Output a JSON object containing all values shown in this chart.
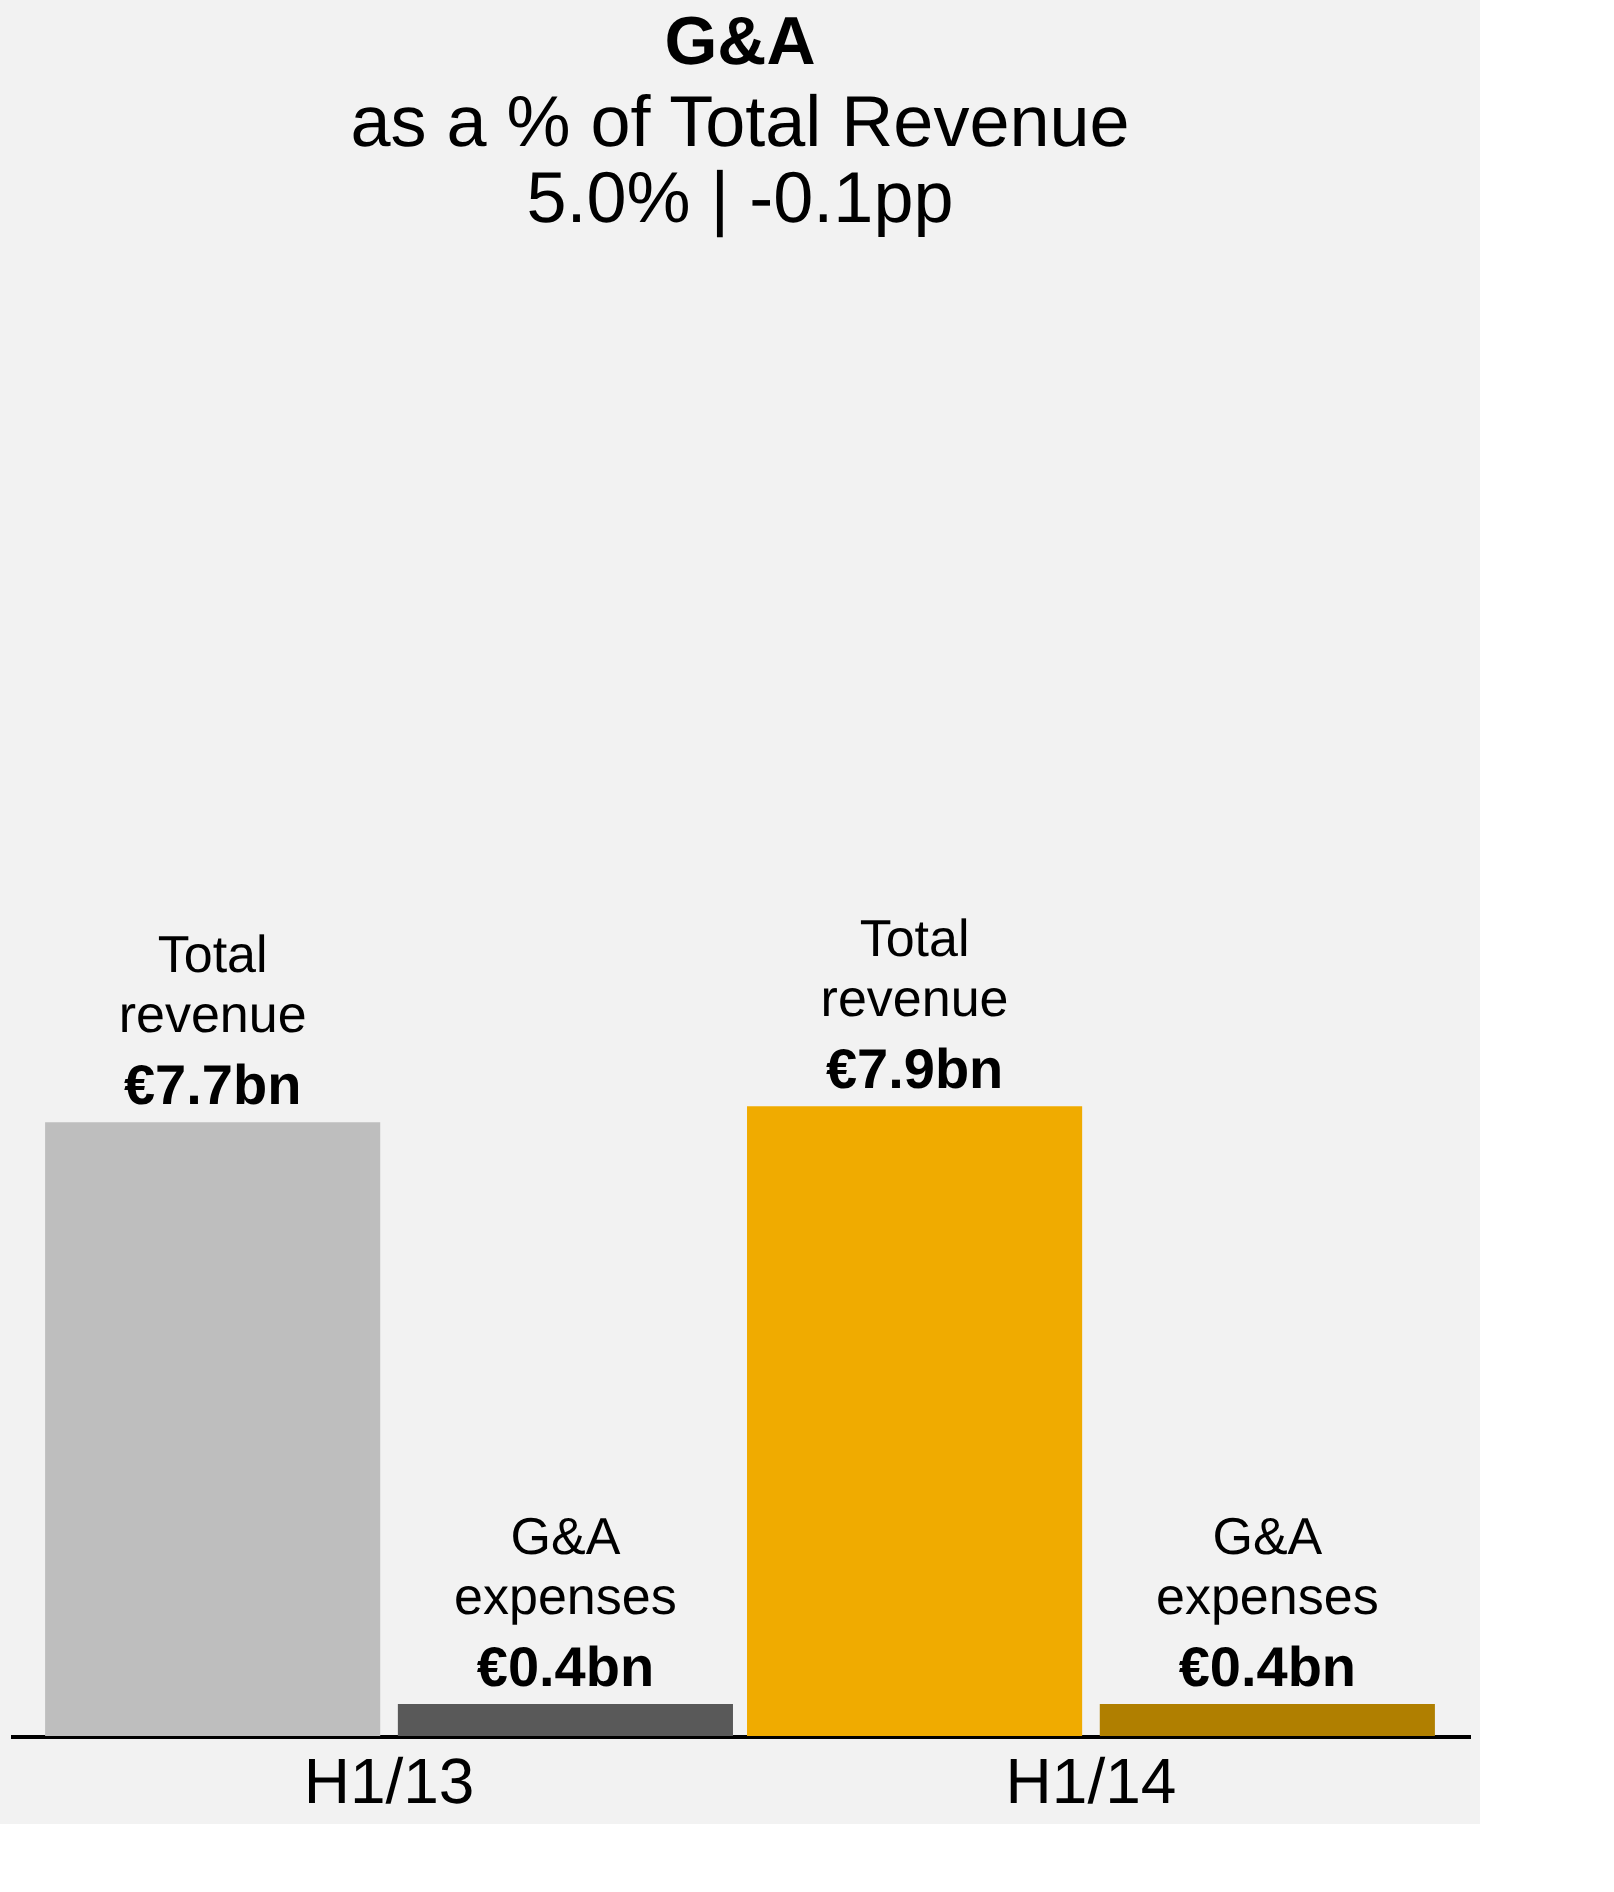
{
  "chart_data": {
    "type": "bar",
    "title": "G&A",
    "subtitle": "as a % of Total Revenue\n5.0% | -0.1pp",
    "categories": [
      "H1/13",
      "H1/14"
    ],
    "series": [
      {
        "name": "Total revenue",
        "colors": [
          "#bebebe",
          "#f0ab00"
        ],
        "values": [
          7.7,
          7.9
        ],
        "value_labels": [
          "€7.7bn",
          "€7.9bn"
        ]
      },
      {
        "name": "G&A expenses",
        "colors": [
          "#595959",
          "#b07f00"
        ],
        "values": [
          0.4,
          0.4
        ],
        "value_labels": [
          "€0.4bn",
          "€0.4bn"
        ]
      }
    ],
    "grid": false,
    "legend": false
  }
}
